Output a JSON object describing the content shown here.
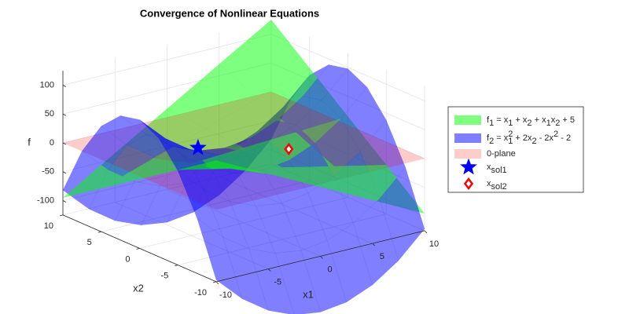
{
  "chart_data": {
    "type": "surface3d",
    "title": "Convergence of Nonlinear Equations",
    "xlabel": "x1",
    "ylabel": "x2",
    "zlabel": "f",
    "xlim": [
      -10,
      10
    ],
    "ylim": [
      -10,
      10
    ],
    "zlim": [
      -125,
      125
    ],
    "xticks": [
      -10,
      -5,
      0,
      5,
      10
    ],
    "yticks": [
      -10,
      -5,
      0,
      5,
      10
    ],
    "zticks": [
      -100,
      -50,
      0,
      50,
      100
    ],
    "grid": true,
    "legend_position": "right",
    "series": [
      {
        "kind": "surface",
        "color": "#00ff00",
        "alpha": 0.5,
        "name": [
          {
            "t": "f"
          },
          {
            "sub": "1"
          },
          {
            "t": " = x"
          },
          {
            "sub": "1"
          },
          {
            "t": " + x"
          },
          {
            "sub": "2"
          },
          {
            "t": " + x"
          },
          {
            "sub": "1"
          },
          {
            "t": "x"
          },
          {
            "sub": "2"
          },
          {
            "t": " + 5"
          }
        ],
        "x": [
          -10,
          -5,
          0,
          5,
          10
        ],
        "y": [
          -10,
          -5,
          0,
          5,
          10
        ],
        "z": [
          [
            85,
            40,
            -5,
            -50,
            -95
          ],
          [
            40,
            20,
            0,
            -20,
            -40
          ],
          [
            -5,
            0,
            5,
            10,
            15
          ],
          [
            -50,
            -20,
            10,
            40,
            70
          ],
          [
            -95,
            -40,
            15,
            70,
            125
          ]
        ]
      },
      {
        "kind": "surface",
        "color": "#0000ff",
        "alpha": 0.5,
        "name": [
          {
            "t": "f"
          },
          {
            "sub": "2"
          },
          {
            "t": " = x"
          },
          {
            "sub": "1"
          },
          {
            "sup": "2"
          },
          {
            "t": " + 2x"
          },
          {
            "sub": "2"
          },
          {
            "t": " - 2x"
          },
          {
            "sup": "2"
          },
          {
            "t": " - 2"
          }
        ],
        "x": [
          -10,
          -7.5,
          -5,
          -2.5,
          0,
          2.5,
          5,
          7.5,
          10
        ],
        "y": [
          -10,
          -7.5,
          -5,
          -2.5,
          0,
          2.5,
          5,
          7.5,
          10
        ],
        "z": [
          [
            -122,
            -165.75,
            -197,
            -215.75,
            -222,
            -215.75,
            -197,
            -165.75,
            -122
          ],
          [
            -29.5,
            -73.25,
            -104.5,
            -123.25,
            -129.5,
            -123.25,
            -104.5,
            -73.25,
            -29.5
          ],
          [
            38,
            -5.75,
            -37,
            -55.75,
            -62,
            -55.75,
            -37,
            -5.75,
            38
          ],
          [
            80.5,
            36.75,
            5.5,
            -13.25,
            -19.5,
            -13.25,
            5.5,
            36.75,
            80.5
          ],
          [
            98,
            54.25,
            23,
            4.25,
            -2,
            4.25,
            23,
            54.25,
            98
          ],
          [
            90.5,
            46.75,
            15.5,
            -3.25,
            -9.5,
            -3.25,
            15.5,
            46.75,
            90.5
          ],
          [
            58,
            14.25,
            -17,
            -35.75,
            -42,
            -35.75,
            -17,
            14.25,
            58
          ],
          [
            0.5,
            -43.25,
            -74.5,
            -93.25,
            -99.5,
            -93.25,
            -74.5,
            -43.25,
            0.5
          ],
          [
            -82,
            -125.75,
            -157,
            -175.75,
            -182,
            -175.75,
            -157,
            -125.75,
            -82
          ]
        ]
      },
      {
        "kind": "surface",
        "color": "#ff0000",
        "alpha": 0.2,
        "name": [
          {
            "t": "0-plane"
          }
        ],
        "x": [
          -10,
          10
        ],
        "y": [
          -10,
          10
        ],
        "z": [
          [
            0,
            0
          ],
          [
            0,
            0
          ]
        ]
      },
      {
        "kind": "marker",
        "marker": "star",
        "color": "#0000ff",
        "name": [
          {
            "t": "x"
          },
          {
            "sub": "sol1"
          }
        ],
        "x": -2.4,
        "y": 2.7,
        "z": 0
      },
      {
        "kind": "marker",
        "marker": "diamond",
        "color": "#ff0000",
        "name": [
          {
            "t": "x"
          },
          {
            "sub": "sol2"
          }
        ],
        "x": 3.0,
        "y": -1.8,
        "z": 0
      }
    ]
  }
}
